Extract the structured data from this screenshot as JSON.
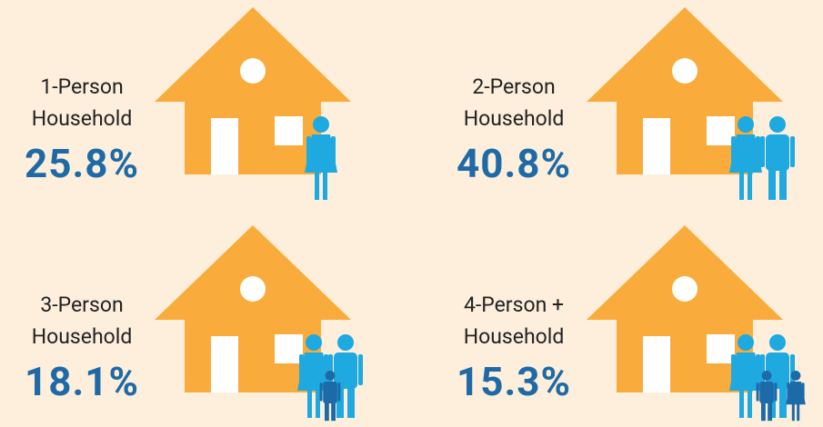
{
  "items": [
    {
      "label": [
        "1-Person",
        "Household"
      ],
      "value": "25.8%"
    },
    {
      "label": [
        "2-Person",
        "Household"
      ],
      "value": "40.8%"
    },
    {
      "label": [
        "3-Person",
        "Household"
      ],
      "value": "18.1%"
    },
    {
      "label": [
        "4-Person +",
        "Household"
      ],
      "value": "15.3%"
    }
  ]
}
